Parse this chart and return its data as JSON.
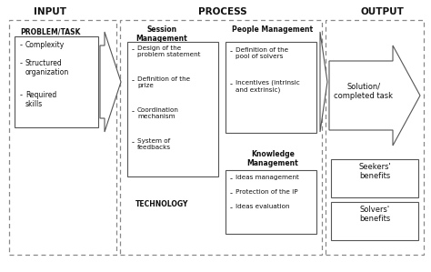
{
  "title_input": "INPUT",
  "title_process": "PROCESS",
  "title_output": "OUTPUT",
  "bg_color": "#ffffff",
  "text_color": "#111111",
  "input_header": "Problem/Task",
  "input_bullets": [
    "Complexity",
    "Structured\norganization",
    "Required\nskills"
  ],
  "session_header": "Session\nManagement",
  "session_bullets": [
    "Design of the\nproblem statement",
    "Definition of the\nprize",
    "Coordination\nmechanism",
    "System of\nfeedbacks"
  ],
  "people_header": "People Management",
  "people_bullets": [
    "Definition of the\npool of solvers",
    "Incentives (intrinsic\nand extrinsic)"
  ],
  "knowledge_header": "Knowledge\nManagement",
  "knowledge_bullets": [
    "Ideas management",
    "Protection of the IP",
    "Ideas evaluation"
  ],
  "technology_label": "Technology",
  "solution_label": "Solution/\ncompleted task",
  "seekers_label": "Seekers'\nbenefits",
  "solvers_label": "Solvers'\nbenefits"
}
